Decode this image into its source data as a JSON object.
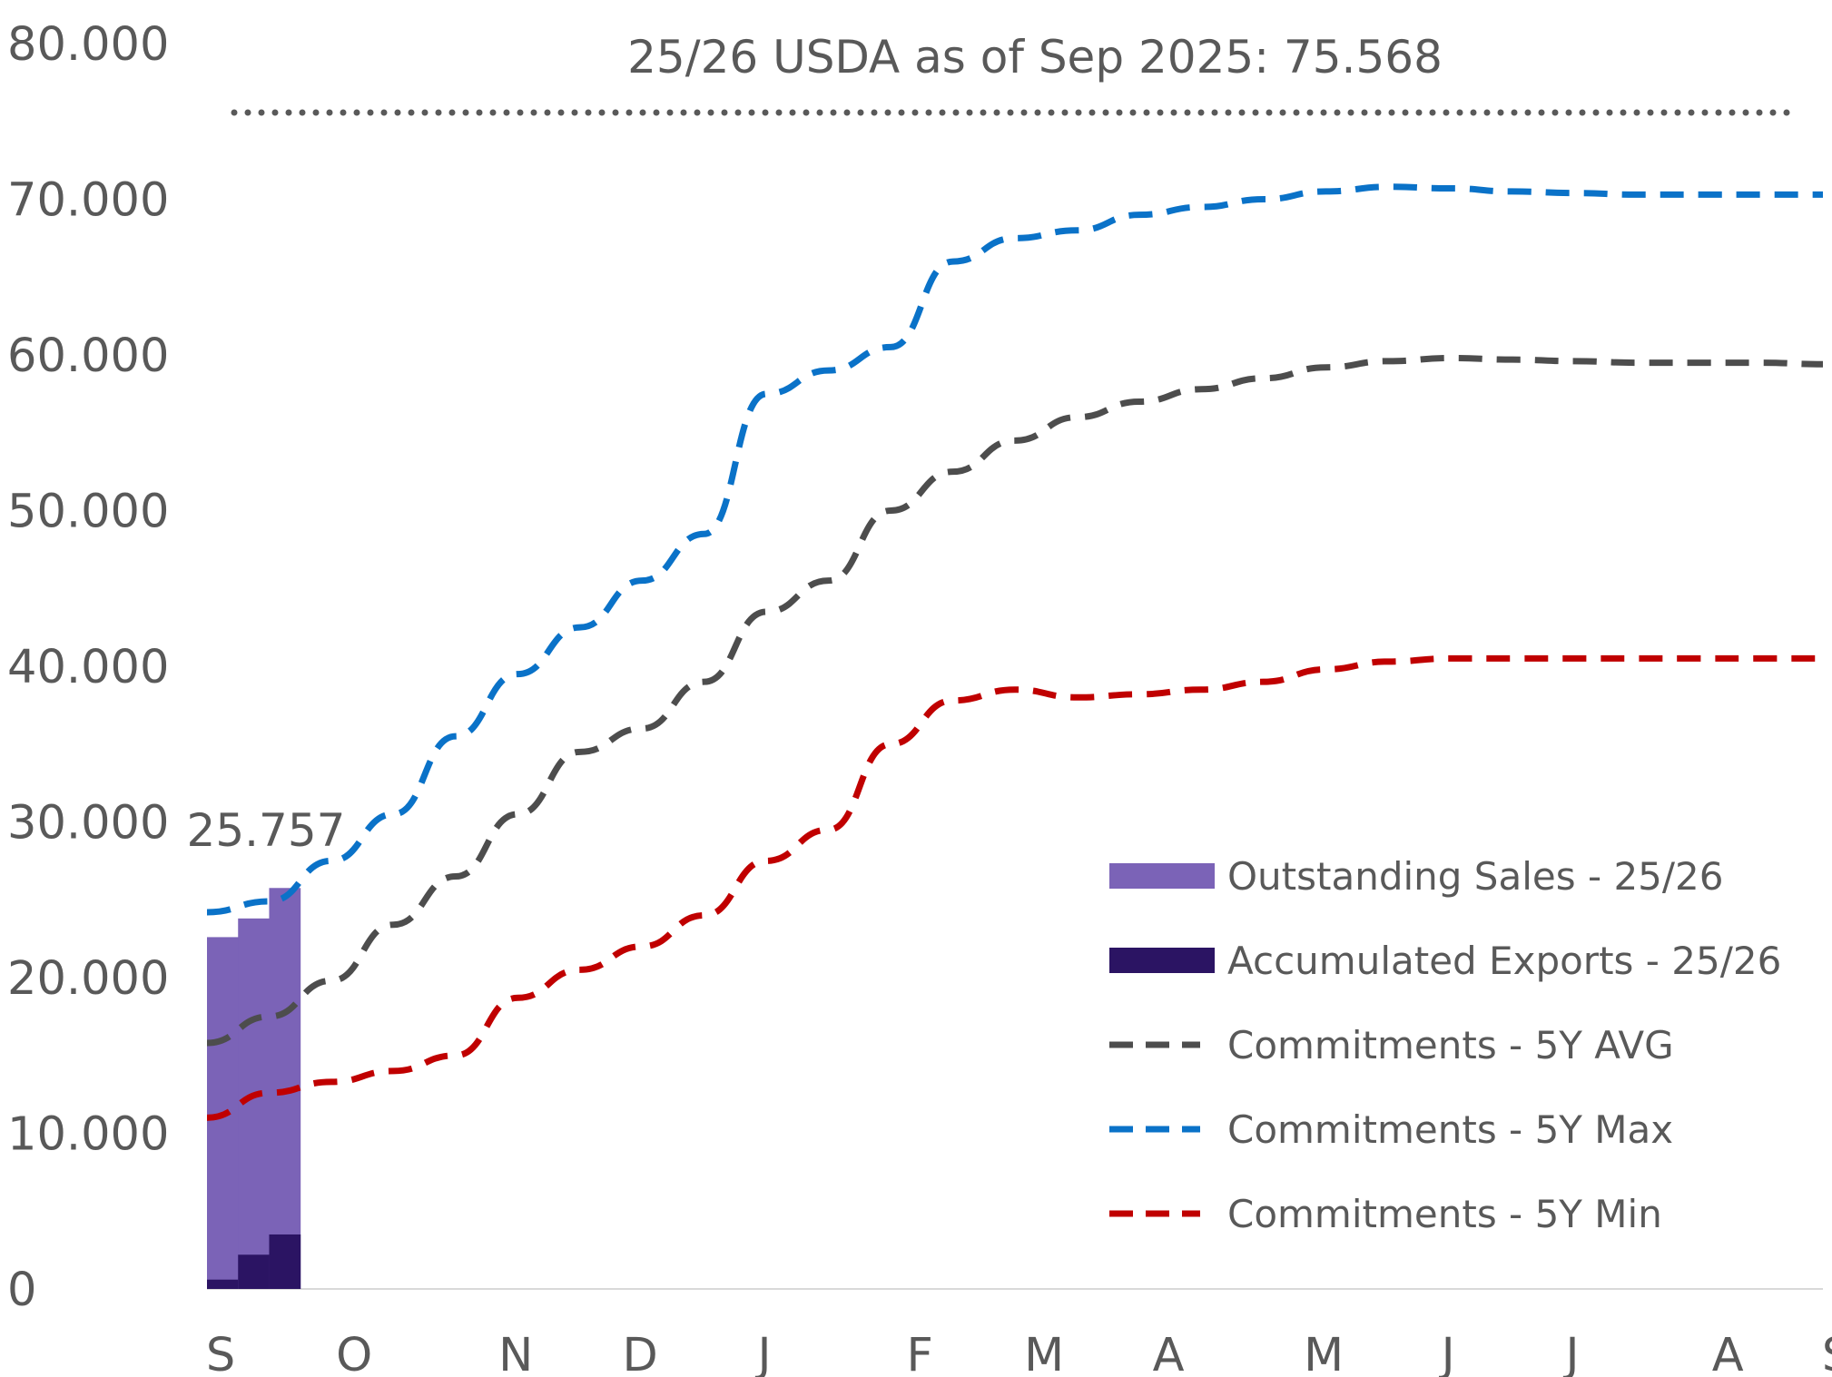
{
  "chart_data": {
    "type": "bar",
    "x_ticks": [
      "S",
      "O",
      "N",
      "D",
      "J",
      "F",
      "M",
      "A",
      "M",
      "J",
      "J",
      "A",
      "S"
    ],
    "y_ticks": [
      "0",
      "10.000",
      "20.000",
      "30.000",
      "40.000",
      "50.000",
      "60.000",
      "70.000",
      "80.000"
    ],
    "ylim": [
      0,
      80000
    ],
    "reference_line": {
      "value": 75568,
      "label": "25/26 USDA as of Sep 2025: 75.568",
      "color": "#595959"
    },
    "bar_annotation": "25.757",
    "bars": {
      "weeks": [
        0,
        1,
        2
      ],
      "outstanding": {
        "name": "Outstanding Sales - 25/26",
        "color": "#7B63B7",
        "values": [
          22600,
          23800,
          25757
        ]
      },
      "exports": {
        "name": "Accumulated Exports - 25/26",
        "color": "#2B1463",
        "values": [
          600,
          2200,
          3500
        ]
      }
    },
    "series": [
      {
        "name": "Commitments - 5Y AVG",
        "color": "#4D4D4D",
        "x": [
          0,
          2,
          4,
          6,
          8,
          10,
          12,
          14,
          16,
          18,
          20,
          22,
          24,
          26,
          28,
          30,
          32,
          34,
          36,
          38,
          40,
          42,
          44,
          46,
          48,
          50,
          52
        ],
        "values": [
          15800,
          17500,
          19800,
          23400,
          26500,
          30500,
          34500,
          36000,
          39000,
          43500,
          45500,
          50000,
          52500,
          54500,
          56000,
          57000,
          57800,
          58500,
          59200,
          59600,
          59800,
          59700,
          59600,
          59500,
          59500,
          59500,
          59400
        ]
      },
      {
        "name": "Commitments - 5Y Max",
        "color": "#0A72C8",
        "x": [
          0,
          2,
          4,
          6,
          8,
          10,
          12,
          14,
          16,
          18,
          20,
          22,
          24,
          26,
          28,
          30,
          32,
          34,
          36,
          38,
          40,
          42,
          44,
          46,
          48,
          50,
          52
        ],
        "values": [
          24200,
          24900,
          27500,
          30500,
          35500,
          39500,
          42500,
          45500,
          48500,
          57500,
          59000,
          60500,
          66000,
          67500,
          68000,
          69000,
          69500,
          70000,
          70500,
          70800,
          70700,
          70500,
          70400,
          70300,
          70300,
          70300,
          70300
        ]
      },
      {
        "name": "Commitments - 5Y Min",
        "color": "#C00000",
        "x": [
          0,
          2,
          4,
          6,
          8,
          10,
          12,
          14,
          16,
          18,
          20,
          22,
          24,
          26,
          28,
          30,
          32,
          34,
          36,
          38,
          40,
          42,
          44,
          46,
          48,
          50,
          52
        ],
        "values": [
          11000,
          12600,
          13300,
          14000,
          15000,
          18700,
          20500,
          22000,
          24000,
          27500,
          29500,
          35000,
          37800,
          38500,
          38000,
          38200,
          38500,
          39000,
          39800,
          40300,
          40500,
          40500,
          40500,
          40500,
          40500,
          40500,
          40500
        ]
      }
    ],
    "legend": [
      {
        "label": "Outstanding Sales - 25/26",
        "style": "bar",
        "color": "#7B63B7"
      },
      {
        "label": "Accumulated Exports - 25/26",
        "style": "bar",
        "color": "#2B1463"
      },
      {
        "label": "Commitments - 5Y AVG",
        "style": "dash",
        "color": "#4D4D4D"
      },
      {
        "label": "Commitments - 5Y Max",
        "style": "dash",
        "color": "#0A72C8"
      },
      {
        "label": "Commitments - 5Y Min",
        "style": "dash",
        "color": "#C00000"
      }
    ],
    "legend_position": "bottom-right"
  }
}
